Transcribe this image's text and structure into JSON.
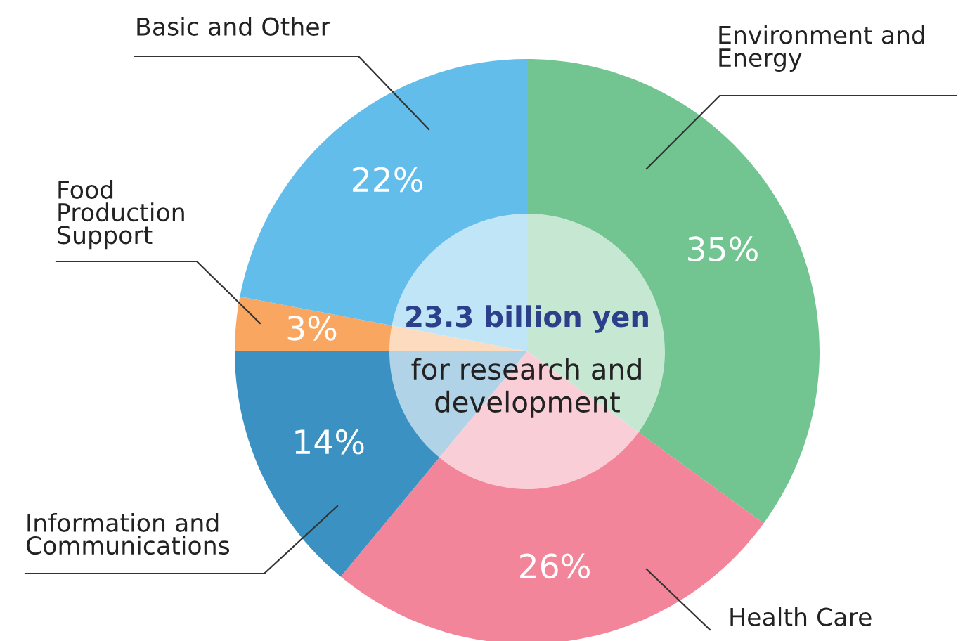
{
  "chart_data": {
    "type": "donut",
    "categories": [
      "Environment and\nEnergy",
      "Health Care",
      "Information and\nCommunications",
      "Food\nProduction\nSupport",
      "Basic and Other"
    ],
    "values": [
      35,
      26,
      14,
      3,
      22
    ],
    "value_labels": [
      "35%",
      "26%",
      "14%",
      "3%",
      "22%"
    ],
    "colors": [
      "#72c590",
      "#f28599",
      "#3b92c2",
      "#f9a660",
      "#63bdea"
    ],
    "annotations": [
      "23.3 billion yen",
      "for research and\ndevelopment"
    ]
  }
}
